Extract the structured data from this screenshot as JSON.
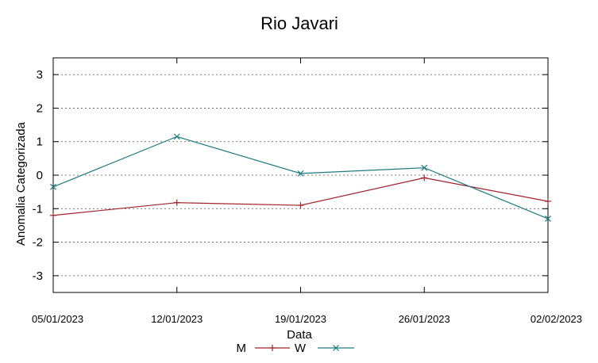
{
  "chart_data": {
    "type": "line",
    "title": "Rio Javari",
    "xlabel": "Data",
    "ylabel": "Anomalia Categorizada",
    "categories": [
      "05/01/2023",
      "12/01/2023",
      "19/01/2023",
      "26/01/2023",
      "02/02/2023"
    ],
    "ylim": [
      -3.5,
      3.5
    ],
    "yticks": [
      "-3",
      "-2",
      "-1",
      "0",
      "1",
      "2",
      "3"
    ],
    "grid": "horizontal-dotted",
    "legend_position": "bottom-center",
    "series": [
      {
        "name": "M",
        "color": "#a0202a",
        "marker": "plus",
        "values": [
          -1.2,
          -0.82,
          -0.9,
          -0.08,
          -0.78
        ]
      },
      {
        "name": "W",
        "color": "#1f7a80",
        "marker": "cross",
        "values": [
          -0.35,
          1.15,
          0.05,
          0.22,
          -1.3
        ]
      }
    ]
  }
}
